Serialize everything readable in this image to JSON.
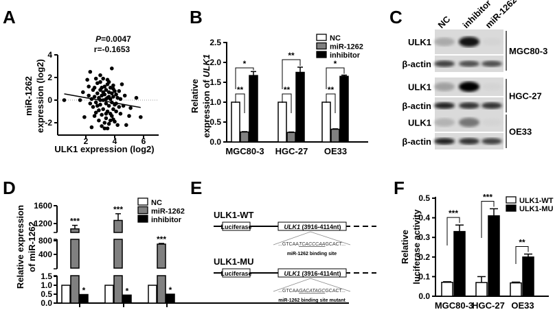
{
  "panels": {
    "A": "A",
    "B": "B",
    "C": "C",
    "D": "D",
    "E": "E",
    "F": "F"
  },
  "chart_data": [
    {
      "id": "A",
      "type": "scatter",
      "annotation_p": "P=0.0047",
      "annotation_p_italic": "P",
      "annotation_p_rest": "=0.0047",
      "annotation_r": "r=-0.1653",
      "xlabel": "ULK1 expression (log2)",
      "ylabel": [
        "miR-1262",
        "expression (log2)"
      ],
      "xticks": [
        "2",
        "4",
        "6"
      ],
      "xtick_values": [
        2,
        4,
        6
      ],
      "yticks": [
        "4",
        "2",
        "0",
        "-2"
      ],
      "ytick_values": [
        4,
        2,
        0,
        -2
      ],
      "xlim": [
        0,
        7
      ],
      "ylim": [
        -3,
        4
      ],
      "reference_line_y": 0,
      "fit_line": [
        [
          0.5,
          0.55
        ],
        [
          5.8,
          -0.65
        ]
      ],
      "points": [
        [
          0.5,
          0
        ],
        [
          1.6,
          0
        ],
        [
          1.8,
          0.7
        ],
        [
          1.9,
          -1.5
        ],
        [
          2.1,
          1.8
        ],
        [
          2.3,
          2.5
        ],
        [
          2.4,
          -2.4
        ],
        [
          2.2,
          1.2
        ],
        [
          2.5,
          0.9
        ],
        [
          2.6,
          0.3
        ],
        [
          2.7,
          -0.2
        ],
        [
          2.8,
          1.5
        ],
        [
          2.9,
          -0.9
        ],
        [
          3.0,
          2.2
        ],
        [
          3.1,
          -2.3
        ],
        [
          3.2,
          1.9
        ],
        [
          3.3,
          -2.5
        ],
        [
          3.5,
          -2.5
        ],
        [
          3.8,
          2.8
        ],
        [
          3.6,
          1.6
        ],
        [
          3.7,
          -1.8
        ],
        [
          3.9,
          1.0
        ],
        [
          4.0,
          -1.9
        ],
        [
          4.2,
          -2.2
        ],
        [
          4.5,
          1.4
        ],
        [
          4.6,
          -0.5
        ],
        [
          4.7,
          0.4
        ],
        [
          4.8,
          -2.2
        ],
        [
          5.0,
          -1.4
        ],
        [
          5.1,
          -0.7
        ],
        [
          5.5,
          0.2
        ],
        [
          5.8,
          -1.5
        ],
        [
          4.4,
          -1.2
        ],
        [
          4.3,
          0.8
        ],
        [
          4.1,
          -0.3
        ],
        [
          2.4,
          0.1
        ],
        [
          2.5,
          -0.6
        ],
        [
          2.6,
          1.1
        ],
        [
          2.7,
          -1.1
        ],
        [
          2.8,
          0.6
        ],
        [
          2.9,
          0.2
        ],
        [
          3.0,
          -0.4
        ],
        [
          3.0,
          0.9
        ],
        [
          3.1,
          0.4
        ],
        [
          3.1,
          -1.3
        ],
        [
          3.2,
          0.0
        ],
        [
          3.2,
          -0.8
        ],
        [
          3.3,
          1.2
        ],
        [
          3.3,
          0.5
        ],
        [
          3.4,
          -0.3
        ],
        [
          3.4,
          -1.6
        ],
        [
          3.4,
          0.9
        ],
        [
          3.5,
          0.2
        ],
        [
          3.5,
          -1.0
        ],
        [
          3.5,
          1.4
        ],
        [
          3.6,
          -0.5
        ],
        [
          3.6,
          0.7
        ],
        [
          3.7,
          0.1
        ],
        [
          3.7,
          1.1
        ],
        [
          3.7,
          -1.2
        ],
        [
          3.8,
          -0.2
        ],
        [
          3.8,
          0.6
        ],
        [
          3.9,
          -0.8
        ],
        [
          3.9,
          0.3
        ],
        [
          4.0,
          0.8
        ],
        [
          4.0,
          -0.4
        ],
        [
          4.1,
          0.5
        ],
        [
          4.1,
          -1.0
        ],
        [
          4.2,
          0.2
        ],
        [
          4.3,
          -0.6
        ],
        [
          2.9,
          -1.8
        ],
        [
          3.3,
          -2.0
        ],
        [
          3.6,
          -2.1
        ],
        [
          2.6,
          -1.4
        ],
        [
          3.0,
          1.6
        ],
        [
          3.5,
          1.8
        ],
        [
          3.9,
          1.3
        ],
        [
          2.3,
          -0.3
        ],
        [
          2.2,
          0.4
        ],
        [
          3.2,
          0.7
        ],
        [
          3.4,
          0.1
        ],
        [
          3.6,
          0.3
        ],
        [
          3.8,
          -1.4
        ],
        [
          3.1,
          1.1
        ],
        [
          2.8,
          -0.5
        ],
        [
          4.4,
          0.1
        ],
        [
          3.9,
          -1.7
        ],
        [
          3.4,
          -1.2
        ],
        [
          2.7,
          1.9
        ],
        [
          3.0,
          0.0
        ]
      ]
    },
    {
      "id": "B",
      "type": "bar",
      "ylabel": [
        "Relative",
        "expression of ",
        "ULK1"
      ],
      "yticks": [
        "0.0",
        "0.5",
        "1.0",
        "1.5",
        "2.0",
        "2.5"
      ],
      "ytick_values": [
        0,
        0.5,
        1,
        1.5,
        2,
        2.5
      ],
      "ylim": [
        0,
        2.5
      ],
      "categories": [
        "MGC80-3",
        "HGC-27",
        "OE33"
      ],
      "series": [
        {
          "name": "NC",
          "color": "#ffffff",
          "values": [
            1.0,
            1.0,
            1.0
          ],
          "errors": [
            0,
            0,
            0
          ]
        },
        {
          "name": "miR-1262",
          "color": "#808080",
          "values": [
            0.25,
            0.24,
            0.32
          ],
          "errors": [
            0.01,
            0.01,
            0.01
          ]
        },
        {
          "name": "inhibitor",
          "color": "#000000",
          "values": [
            1.67,
            1.75,
            1.65
          ],
          "errors": [
            0.1,
            0.13,
            0.03
          ]
        }
      ],
      "legend": "top-right",
      "significance": {
        "nc_vs_mir": [
          "**",
          "**",
          "**"
        ],
        "nc_vs_inhibitor": [
          "*",
          "**",
          "*"
        ]
      }
    },
    {
      "id": "D",
      "type": "bar",
      "ylabel": [
        "Relative expression",
        "of miR-1262"
      ],
      "axis_breaks": true,
      "yticks_top": [
        "1600",
        "1200"
      ],
      "ytick_values_top": [
        1600,
        1200
      ],
      "yticks_mid": [
        "800",
        "400"
      ],
      "ytick_values_mid": [
        800,
        400
      ],
      "yticks_low": [
        "1.5",
        "1.0",
        "0.5",
        "0.0"
      ],
      "ytick_values_low": [
        1.5,
        1.0,
        0.5,
        0.0
      ],
      "categories": [
        "",
        "",
        ""
      ],
      "series": [
        {
          "name": "NC",
          "color": "#ffffff",
          "values": [
            1.0,
            1.0,
            1.0
          ],
          "errors": [
            0,
            0,
            0
          ]
        },
        {
          "name": "miR-1262",
          "color": "#808080",
          "values": [
            1080,
            1270,
            700
          ],
          "errors": [
            80,
            150,
            20
          ]
        },
        {
          "name": "inhibitor",
          "color": "#000000",
          "values": [
            0.48,
            0.45,
            0.5
          ],
          "errors": [
            0.02,
            0.02,
            0.02
          ]
        }
      ],
      "legend": "top-right",
      "significance": {
        "mir": [
          "***",
          "***",
          "***"
        ],
        "inhibitor": [
          "*",
          "*",
          "*"
        ]
      }
    },
    {
      "id": "F",
      "type": "bar",
      "ylabel": [
        "Relative",
        "luciferase activity"
      ],
      "yticks": [
        "0.0",
        "0.1",
        "0.2",
        "0.3",
        "0.4",
        "0.5"
      ],
      "ytick_values": [
        0,
        0.1,
        0.2,
        0.3,
        0.4,
        0.5
      ],
      "ylim": [
        0,
        0.5
      ],
      "categories": [
        "MGC80-3",
        "HGC-27",
        "OE33"
      ],
      "series": [
        {
          "name": "ULK1-WT",
          "color": "#ffffff",
          "values": [
            0.071,
            0.07,
            0.068
          ],
          "errors": [
            0.003,
            0.03,
            0.004
          ]
        },
        {
          "name": "ULK1-MU",
          "color": "#000000",
          "values": [
            0.33,
            0.41,
            0.2
          ],
          "errors": [
            0.033,
            0.036,
            0.015
          ]
        }
      ],
      "legend": "top-right",
      "significance": [
        "***",
        "***",
        "**"
      ]
    }
  ],
  "western_blot": {
    "lanes": [
      "NC",
      "inhibitor",
      "miR-1262"
    ],
    "cell_lines": [
      {
        "name": "MGC80-3",
        "ulk1_label": "ULK1",
        "actin_label": "β-actin",
        "ulk1_intensity": [
          0.35,
          0.95,
          0.05
        ],
        "actin_intensity": [
          0.8,
          0.75,
          0.75
        ]
      },
      {
        "name": "HGC-27",
        "ulk1_label": "ULK1",
        "actin_label": "β-actin",
        "ulk1_intensity": [
          0.4,
          1.0,
          0.05
        ],
        "actin_intensity": [
          0.9,
          0.85,
          0.85
        ]
      },
      {
        "name": "OE33",
        "ulk1_label": "ULK1",
        "actin_label": "β-actin",
        "ulk1_intensity": [
          0.3,
          0.6,
          0.05
        ],
        "actin_intensity": [
          0.9,
          0.85,
          0.8
        ]
      }
    ]
  },
  "construct": {
    "wt_label": "ULK1-WT",
    "mu_label": "ULK1-MU",
    "luciferase": "Luciferase",
    "ulk1_gene": "ULK1",
    "ulk1_range": " (3916-4114nt)",
    "wt_seq_pre": "...GTCAA",
    "wt_seq_site": "TCACCCAA",
    "wt_seq_post": "GCACT...",
    "mu_seq_pre": "...GTCAA",
    "mu_seq_site": "GACATAGC",
    "mu_seq_post": "GCACT...",
    "wt_caption": "miR-1262 binding site",
    "mu_caption": "miR-1262 binding site mutant"
  }
}
